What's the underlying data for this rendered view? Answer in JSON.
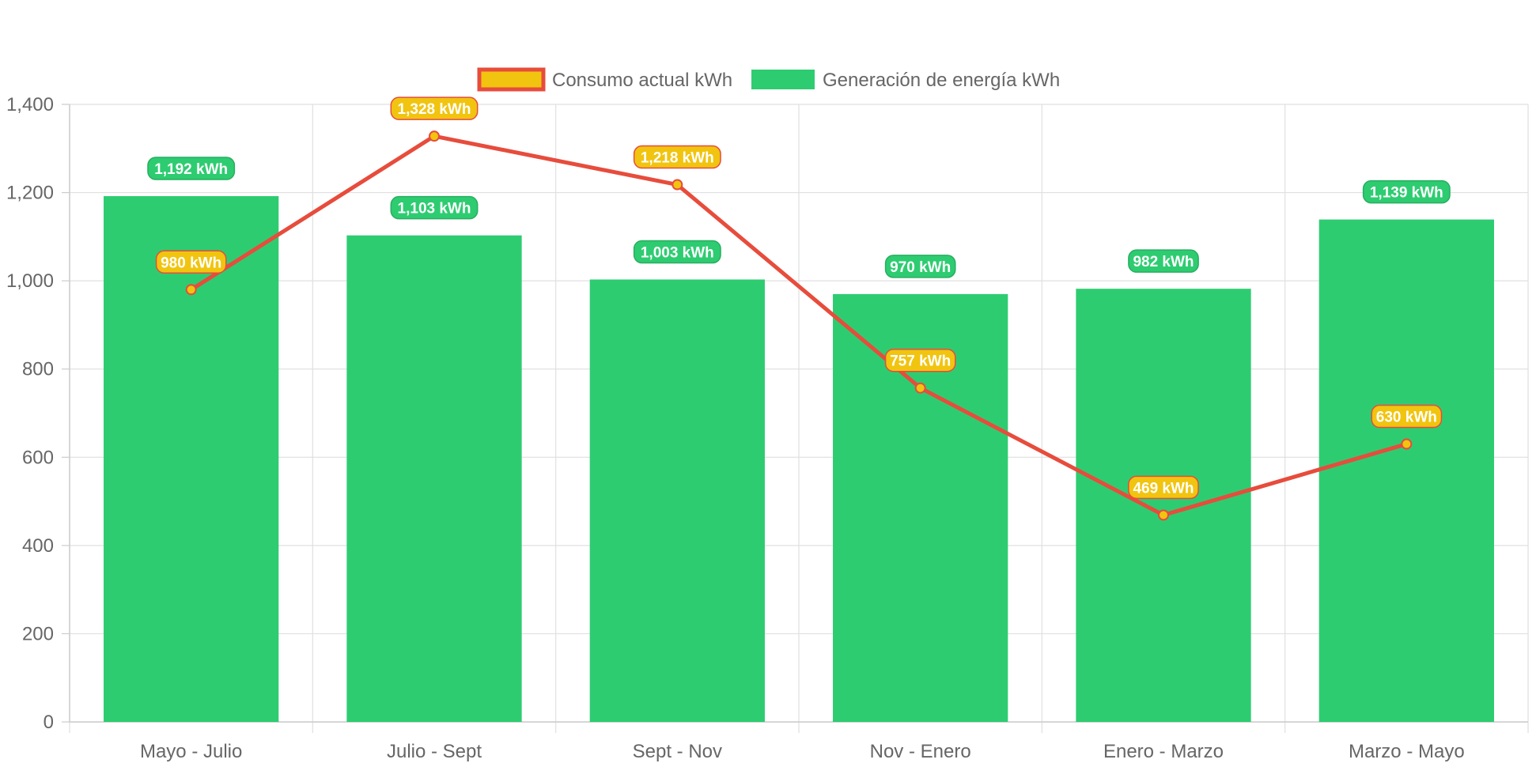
{
  "chart_data": {
    "type": "bar",
    "categories": [
      "Mayo - Julio",
      "Julio - Sept",
      "Sept - Nov",
      "Nov - Enero",
      "Enero - Marzo",
      "Marzo - Mayo"
    ],
    "series": [
      {
        "name": "Consumo actual kWh",
        "type": "line",
        "values": [
          980,
          1328,
          1218,
          757,
          469,
          630
        ],
        "labels": [
          "980 kWh",
          "1,328 kWh",
          "1,218 kWh",
          "757 kWh",
          "469 kWh",
          "630 kWh"
        ],
        "color": "#e74c3c",
        "fill_color": "#f1c40f"
      },
      {
        "name": "Generación de energía kWh",
        "type": "bar",
        "values": [
          1192,
          1103,
          1003,
          970,
          982,
          1139
        ],
        "labels": [
          "1,192 kWh",
          "1,103 kWh",
          "1,003 kWh",
          "970 kWh",
          "982 kWh",
          "1,139 kWh"
        ],
        "color": "#2ecc71",
        "border_color": "#27ae60"
      }
    ],
    "y_ticks": [
      "0",
      "200",
      "400",
      "600",
      "800",
      "1,000",
      "1,200",
      "1,400"
    ],
    "ylim": [
      0,
      1400
    ],
    "grid": true,
    "legend_position": "top"
  }
}
